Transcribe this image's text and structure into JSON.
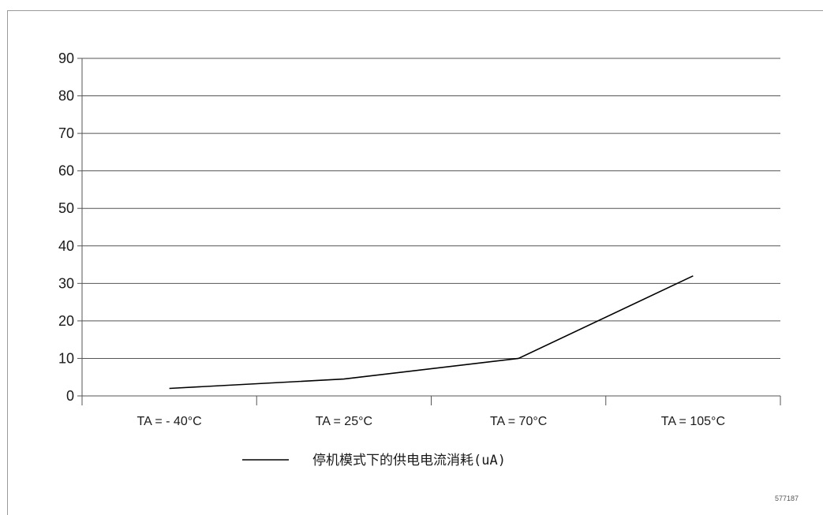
{
  "chart_data": {
    "type": "line",
    "title": "",
    "xlabel": "",
    "ylabel": "",
    "categories": [
      "TA = - 40°C",
      "TA = 25°C",
      "TA = 70°C",
      "TA = 105°C"
    ],
    "series": [
      {
        "name": "停机模式下的供电电流消耗(uA)",
        "values": [
          2,
          4.5,
          10,
          32
        ]
      }
    ],
    "ylim": [
      0,
      90
    ],
    "yticks": [
      0,
      10,
      20,
      30,
      40,
      50,
      60,
      70,
      80,
      90
    ],
    "grid": true,
    "legend_position": "bottom-center",
    "line_color": "#000000",
    "grid_color": "#555555"
  },
  "figure_id": "577187"
}
